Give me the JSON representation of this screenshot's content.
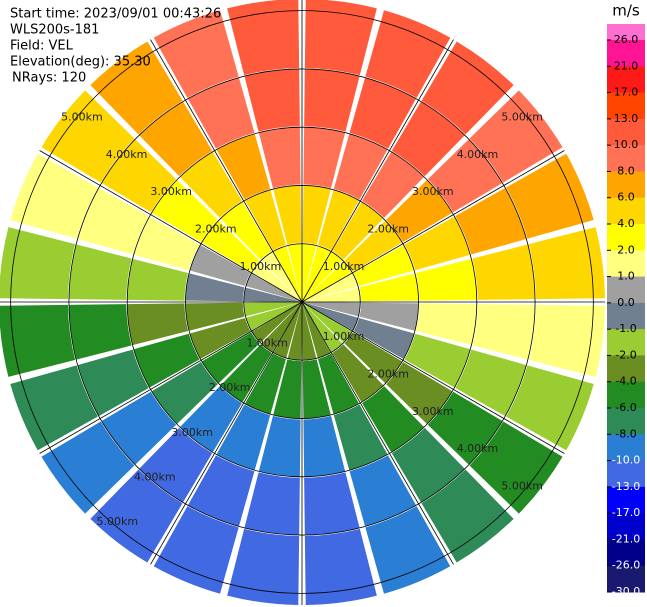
{
  "chart_data": {
    "type": "ppi",
    "info": [
      "Start time: 2023/09/01 00:43:26",
      "WLS200s-181",
      "Field: VEL",
      "Elevation(deg): 35.30",
      "NRays: 120"
    ],
    "azimuths": [
      0,
      15,
      30,
      45,
      60,
      75,
      90,
      105,
      120,
      135,
      150,
      165,
      180,
      195,
      210,
      225,
      240,
      255,
      270,
      285,
      300,
      315,
      330,
      345,
      360
    ],
    "range_bins": [
      0,
      1,
      2,
      3,
      4,
      5.2
    ],
    "range_rings": [
      {
        "value": 1,
        "label": "1.00km"
      },
      {
        "value": 2,
        "label": "2.00km"
      },
      {
        "value": 3,
        "label": "3.00km"
      },
      {
        "value": 4,
        "label": "4.00km"
      },
      {
        "value": 5,
        "label": "5.00km"
      }
    ],
    "values": [
      [
        3.0,
        5.9,
        8.9,
        10.9,
        11.9
      ],
      [
        3.0,
        5.9,
        8.9,
        10.9,
        11.9
      ],
      [
        2.8,
        5.5,
        8.3,
        10.2,
        11.1
      ],
      [
        2.4,
        4.8,
        7.1,
        8.7,
        9.5
      ],
      [
        1.8,
        3.7,
        5.5,
        6.7,
        7.3
      ],
      [
        1.1,
        2.3,
        3.4,
        4.2,
        4.6
      ],
      [
        0.4,
        0.8,
        1.2,
        1.4,
        1.6
      ],
      [
        -0.4,
        -0.8,
        -1.2,
        -1.4,
        -1.6
      ],
      [
        -1.1,
        -2.3,
        -3.4,
        -4.2,
        -4.6
      ],
      [
        -1.8,
        -3.7,
        -5.5,
        -6.7,
        -7.3
      ],
      [
        -2.4,
        -4.8,
        -7.1,
        -8.7,
        -9.5
      ],
      [
        -2.8,
        -5.5,
        -8.3,
        -10.2,
        -11.1
      ],
      [
        -3.0,
        -5.9,
        -8.9,
        -10.9,
        -11.9
      ],
      [
        -3.0,
        -5.9,
        -8.9,
        -10.9,
        -11.9
      ],
      [
        -2.8,
        -5.5,
        -8.3,
        -10.2,
        -11.1
      ],
      [
        -2.4,
        -4.8,
        -7.1,
        -8.7,
        -9.5
      ],
      [
        -1.8,
        -3.7,
        -5.5,
        -6.7,
        -7.3
      ],
      [
        -1.1,
        -2.3,
        -3.4,
        -4.2,
        -4.6
      ],
      [
        -0.4,
        -0.8,
        -1.2,
        -1.4,
        -1.6
      ],
      [
        0.4,
        0.8,
        1.2,
        1.4,
        1.6
      ],
      [
        1.1,
        2.3,
        3.4,
        4.2,
        4.6
      ],
      [
        1.8,
        3.7,
        5.5,
        6.7,
        7.3
      ],
      [
        2.4,
        4.8,
        7.1,
        8.7,
        9.5
      ],
      [
        2.8,
        5.5,
        8.3,
        10.2,
        11.1
      ]
    ],
    "colorbar": {
      "title": "m/s",
      "levels": [
        {
          "value": 26,
          "label": "26.0"
        },
        {
          "value": 21,
          "label": "21.0"
        },
        {
          "value": 17,
          "label": "17.0"
        },
        {
          "value": 13,
          "label": "13.0"
        },
        {
          "value": 10,
          "label": "10.0"
        },
        {
          "value": 8,
          "label": "8.0"
        },
        {
          "value": 6,
          "label": "6.0"
        },
        {
          "value": 4,
          "label": "4.0"
        },
        {
          "value": 2,
          "label": "2.0"
        },
        {
          "value": 1,
          "label": "1.0"
        },
        {
          "value": 0,
          "label": "0.0"
        },
        {
          "value": -1,
          "label": "-1.0"
        },
        {
          "value": -2,
          "label": "-2.0"
        },
        {
          "value": -4,
          "label": "-4.0"
        },
        {
          "value": -6,
          "label": "-6.0"
        },
        {
          "value": -8,
          "label": "-8.0"
        },
        {
          "value": -10,
          "label": "-10.0"
        },
        {
          "value": -13,
          "label": "-13.0"
        },
        {
          "value": -17,
          "label": "-17.0"
        },
        {
          "value": -21,
          "label": "-21.0"
        },
        {
          "value": -26,
          "label": "-26.0"
        },
        {
          "value": -30,
          "label": "-30.0"
        }
      ],
      "colors": [
        "#ff1493",
        "#ff1a1a",
        "#ff4500",
        "#ff5a3c",
        "#ff7256",
        "#ffa500",
        "#ffd700",
        "#ffff00",
        "#ffff80",
        "#a0a0a0",
        "#708090",
        "#9acd32",
        "#6b8e23",
        "#228b22",
        "#2e8b57",
        "#2a7fd4",
        "#4169e1",
        "#0000ff",
        "#0000cd",
        "#00008b",
        "#191970"
      ]
    }
  }
}
